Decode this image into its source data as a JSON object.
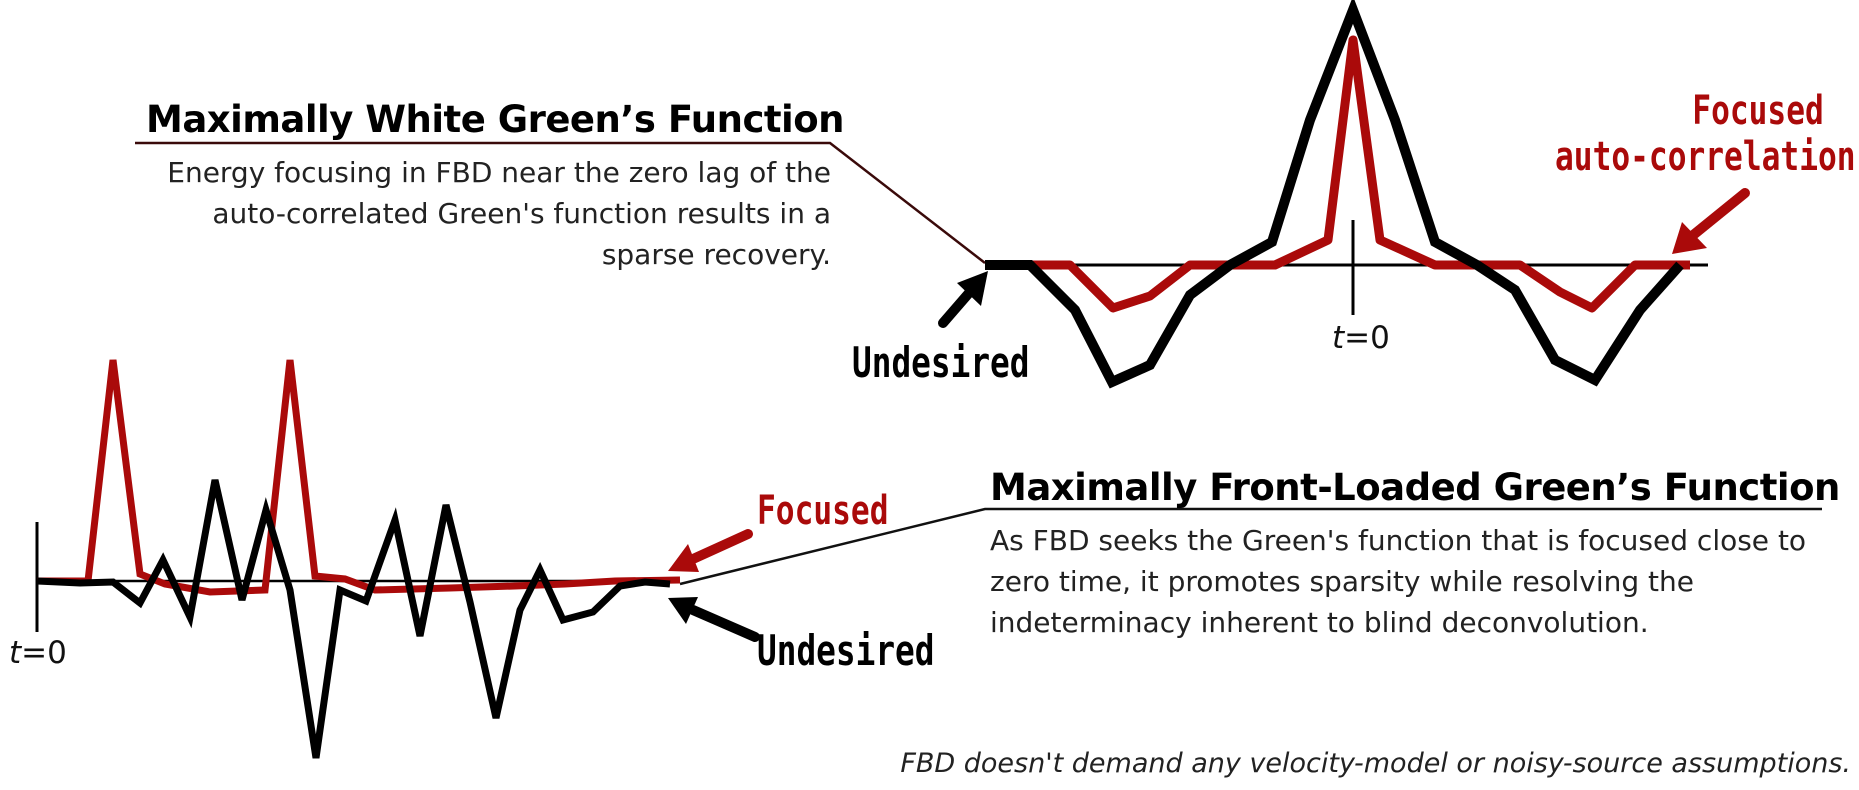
{
  "top_block": {
    "heading": "Maximally White Green’s Function",
    "body": "Energy focusing in FBD near the zero lag of the auto-correlated Green's function results in a sparse recovery.",
    "focused_label_line1": "Focused",
    "focused_label_line2": "auto-correlation",
    "undesired_label": "Undesired",
    "t0_var": "t",
    "t0_rest": "=0"
  },
  "bottom_block": {
    "heading": "Maximally Front-Loaded Green’s Function",
    "body": "As FBD seeks the Green's function that is focused close to zero time, it promotes sparsity while resolving the indeterminacy inherent to blind deconvolution.",
    "focused_label": "Focused",
    "undesired_label": "Undesired",
    "t0_var": "t",
    "t0_rest": "=0"
  },
  "footer": "FBD doesn't demand any velocity-model or noisy-source assumptions.",
  "colors": {
    "focused_red": "#aa0a0a",
    "undesired_black": "#000000",
    "heading_underline": "#5a1010",
    "text": "#222222"
  }
}
